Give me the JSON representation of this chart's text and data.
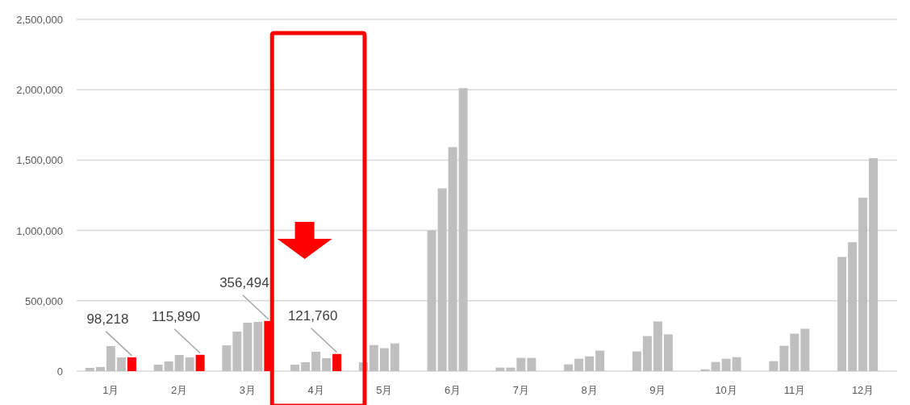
{
  "chart_data": {
    "type": "bar",
    "categories": [
      "1月",
      "2月",
      "3月",
      "4月",
      "5月",
      "6月",
      "7月",
      "8月",
      "9月",
      "10月",
      "11月",
      "12月"
    ],
    "series": [
      {
        "color": "#bfbfbf",
        "values": [
          23000,
          46000,
          183000,
          46000,
          62000,
          1000000,
          25000,
          48000,
          140000,
          13000,
          71000,
          812000
        ]
      },
      {
        "color": "#bfbfbf",
        "values": [
          29000,
          69000,
          281000,
          63000,
          185000,
          1299000,
          25000,
          88000,
          249000,
          65000,
          180000,
          916000
        ]
      },
      {
        "color": "#bfbfbf",
        "values": [
          178000,
          115000,
          344000,
          138000,
          163000,
          1592000,
          94000,
          105000,
          353000,
          88000,
          266000,
          1232000
        ]
      },
      {
        "color": "#bfbfbf",
        "values": [
          97000,
          98000,
          350000,
          92000,
          197000,
          2011000,
          94000,
          146000,
          261000,
          99000,
          301000,
          1513000
        ]
      },
      {
        "color": "#ff0000",
        "values": [
          98218,
          115890,
          356494,
          121760,
          null,
          null,
          null,
          null,
          null,
          null,
          null,
          null
        ],
        "value_labels": [
          "98,218",
          "115,890",
          "356,494",
          "121,760",
          null,
          null,
          null,
          null,
          null,
          null,
          null,
          null
        ]
      }
    ],
    "ylim": [
      0,
      2500000
    ],
    "yticks": [
      0,
      {
        "value": 500000,
        "label": "500,000"
      },
      {
        "value": 1000000,
        "label": "1,000,000"
      },
      {
        "value": 1500000,
        "label": "1,500,000"
      },
      {
        "value": 2000000,
        "label": "2,000,000"
      },
      {
        "value": 2500000,
        "label": "2,500,000"
      }
    ],
    "grid": "y"
  }
}
